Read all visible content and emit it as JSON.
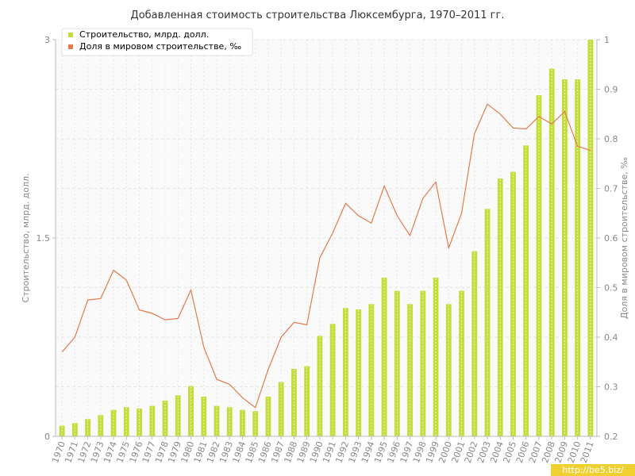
{
  "chart_data": {
    "type": "bar+line",
    "title": "Добавленная стоимость строительства Люксембурга, 1970–2011 гг.",
    "categories": [
      "1970",
      "1971",
      "1972",
      "1973",
      "1974",
      "1975",
      "1976",
      "1977",
      "1978",
      "1979",
      "1980",
      "1981",
      "1982",
      "1983",
      "1984",
      "1985",
      "1986",
      "1987",
      "1988",
      "1989",
      "1990",
      "1991",
      "1992",
      "1993",
      "1994",
      "1995",
      "1996",
      "1997",
      "1998",
      "1999",
      "2000",
      "2001",
      "2002",
      "2003",
      "2004",
      "2005",
      "2006",
      "2007",
      "2008",
      "2009",
      "2010",
      "2011"
    ],
    "y_left": {
      "label": "Строительство, млрд. долл.",
      "ylim": [
        0,
        3
      ],
      "ticks": [
        "0",
        "1.5",
        "3"
      ]
    },
    "y_right": {
      "label": "Доля в мировом строительстве, ‰",
      "ylim": [
        0.2,
        1.0
      ],
      "ticks": [
        "0.2",
        "0.3",
        "0.4",
        "0.5",
        "0.6",
        "0.7",
        "0.8",
        "0.9",
        "1"
      ]
    },
    "series": [
      {
        "name": "Строительство, млрд. долл.",
        "type": "bar",
        "axis": "left",
        "color": "#c4dd3c",
        "values": [
          0.08,
          0.1,
          0.13,
          0.16,
          0.2,
          0.22,
          0.21,
          0.23,
          0.27,
          0.31,
          0.38,
          0.3,
          0.23,
          0.22,
          0.2,
          0.19,
          0.3,
          0.41,
          0.51,
          0.53,
          0.76,
          0.85,
          0.97,
          0.96,
          1.0,
          1.2,
          1.1,
          1.0,
          1.1,
          1.2,
          1.0,
          1.1,
          1.4,
          1.72,
          1.95,
          2.0,
          2.2,
          2.58,
          2.78,
          2.7,
          2.7,
          3.0
        ]
      },
      {
        "name": "Доля в мировом строительстве, ‰",
        "type": "line",
        "axis": "right",
        "color": "#e27b4e",
        "values": [
          0.37,
          0.4,
          0.475,
          0.478,
          0.535,
          0.515,
          0.455,
          0.448,
          0.435,
          0.438,
          0.495,
          0.38,
          0.315,
          0.305,
          0.278,
          0.258,
          0.335,
          0.4,
          0.43,
          0.425,
          0.56,
          0.61,
          0.67,
          0.645,
          0.63,
          0.705,
          0.645,
          0.605,
          0.68,
          0.713,
          0.58,
          0.65,
          0.81,
          0.87,
          0.85,
          0.822,
          0.82,
          0.845,
          0.83,
          0.855,
          0.785,
          0.777
        ]
      }
    ],
    "legend": {
      "position": "top-left"
    },
    "grid": true
  },
  "watermark": "http://be5.biz/"
}
